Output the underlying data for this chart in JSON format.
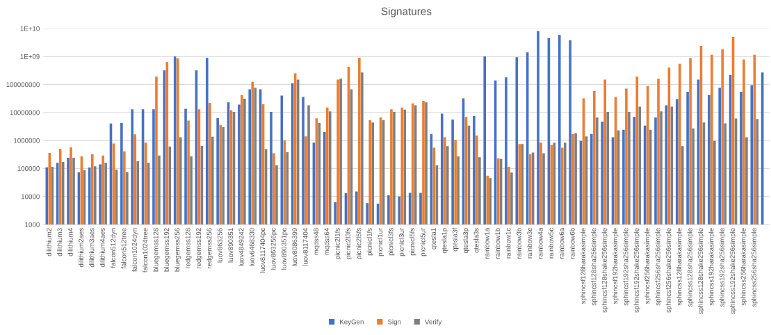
{
  "chart_data": {
    "type": "bar",
    "title": "Signatures",
    "categories": [
      "dilithium2",
      "dilithium3",
      "dilithium4",
      "dilithium2aes",
      "dilithium3aes",
      "dilithium4aes",
      "falcon512dyn",
      "falcon512tree",
      "falcon1024dyn",
      "falcon1024tree",
      "bluegemss128",
      "bluegemss192",
      "bluegemss256",
      "redgemss128",
      "redgemss192",
      "redgemss256",
      "luov863256",
      "luov890351",
      "luov4849242",
      "luov6468330",
      "luov8117404pc",
      "luov863256pc",
      "luov890351pc",
      "luov8086399",
      "luov8117404",
      "mqdss48",
      "mqdss64",
      "picnic2l1fs",
      "picnic2l3fs",
      "picnic2l5fs",
      "picnicl1fs",
      "picnicl1ur",
      "picnicl3fs",
      "picnicl3ur",
      "picnicl5fs",
      "picnicl5ur",
      "qtesla1",
      "qtesla1p",
      "qtesla3f",
      "qtesla3p",
      "qtesla3s",
      "rainbow1a",
      "rainbow1b",
      "rainbow1c",
      "rainbow3b",
      "rainbow3c",
      "rainbow4a",
      "rainbow5c",
      "rainbow6a",
      "rainbow6b",
      "sphincsf128harakasimple",
      "sphincsf128sha256simple",
      "sphincsf128shake256simple",
      "sphincsf192harakasimple",
      "sphincsf192sha256simple",
      "sphincsf192shake256simple",
      "sphincsf256harakasimple",
      "sphincsf256sha256simple",
      "sphincsf256shake256simple",
      "sphincss128harakasimple",
      "sphincss128sha256simple",
      "sphincss128shake256simple",
      "sphincss192harakasimple",
      "sphincss192sha256simple",
      "sphincss192shake256simple",
      "sphincss256harakasimple",
      "sphincss256sha256simple",
      null
    ],
    "series": [
      {
        "name": "KeyGen",
        "color": "#4472c4",
        "values": [
          110000,
          160000,
          240000,
          72000,
          108000,
          140000,
          4000000,
          4200000,
          13000000,
          13000000,
          13000000,
          320000000,
          1000000000,
          13500000,
          320000000,
          890000000,
          6300000,
          23000000,
          19000000,
          67000000,
          67000000,
          10500000,
          40000000,
          110000000,
          36000000,
          830000,
          2000000,
          6200,
          13000,
          15000,
          5800,
          5500,
          11000,
          10000,
          13500,
          13500,
          1700000,
          9100000,
          5600000,
          32000000,
          7400000,
          1000000000,
          140000000,
          180000000,
          950000000,
          1400000000,
          8000000000,
          4500000000,
          5900000000,
          3800000000,
          960000,
          1700000,
          4700000,
          1300000,
          2400000,
          6900000,
          3400000,
          6600000,
          18000000,
          30000000,
          55000000,
          150000000,
          42000000,
          76000000,
          220000000,
          55000000,
          94000000,
          270000000
        ]
      },
      {
        "name": "Sign",
        "color": "#ed7d31",
        "values": [
          360000,
          500000,
          570000,
          270000,
          320000,
          290000,
          780000,
          410000,
          1650000,
          840000,
          190000000,
          630000000,
          850000000,
          5100000,
          13000000,
          22000000,
          3600000,
          12000000,
          42000000,
          125000000,
          20000000,
          350000,
          1000000,
          250000000,
          1400000,
          6200000,
          15000000,
          150000000,
          430000000,
          900000000,
          5300000,
          6600000,
          13000000,
          15000000,
          21000000,
          26000000,
          550000,
          1300000,
          1050000,
          6900000,
          1500000,
          55000,
          230000,
          115000,
          740000,
          320000,
          830000,
          680000,
          550000,
          1700000,
          32000000,
          58000000,
          150000000,
          36000000,
          71000000,
          190000000,
          87000000,
          160000000,
          400000000,
          550000000,
          880000000,
          2400000000,
          1150000000,
          1800000000,
          5000000000,
          780000000,
          1150000000,
          null
        ]
      },
      {
        "name": "Verify",
        "color": "#7f7f7f",
        "values": [
          115000,
          170000,
          240000,
          87000,
          120000,
          160000,
          91000,
          75000,
          180000,
          160000,
          290000,
          610000,
          1300000,
          270000,
          640000,
          1350000,
          3000000,
          10500000,
          31000000,
          76000000,
          490000,
          130000,
          380000,
          150000000,
          18000000,
          4200000,
          11000000,
          160000000,
          67000000,
          270000000,
          4400000,
          5300000,
          10500000,
          12600000,
          18000000,
          23000000,
          130000,
          630000,
          270000,
          3400000,
          250000,
          45000,
          220000,
          71000,
          740000,
          370000,
          350000,
          830000,
          830000,
          1800000,
          1400000,
          6600000,
          10500000,
          2300000,
          10500000,
          16000000,
          2400000,
          11000000,
          16000000,
          630000,
          2700000,
          4400000,
          960000,
          4100000,
          6100000,
          1300000,
          5800000,
          null
        ]
      }
    ],
    "log": "y",
    "ylim": [
      1000,
      10000000000
    ],
    "yticks": [
      1000,
      10000,
      100000,
      1000000,
      10000000,
      100000000,
      {
        "value": 1000000000,
        "label": "1E+09"
      },
      {
        "value": 10000000000,
        "label": "1E+10"
      }
    ],
    "grid": "y",
    "legend": "bottom"
  }
}
